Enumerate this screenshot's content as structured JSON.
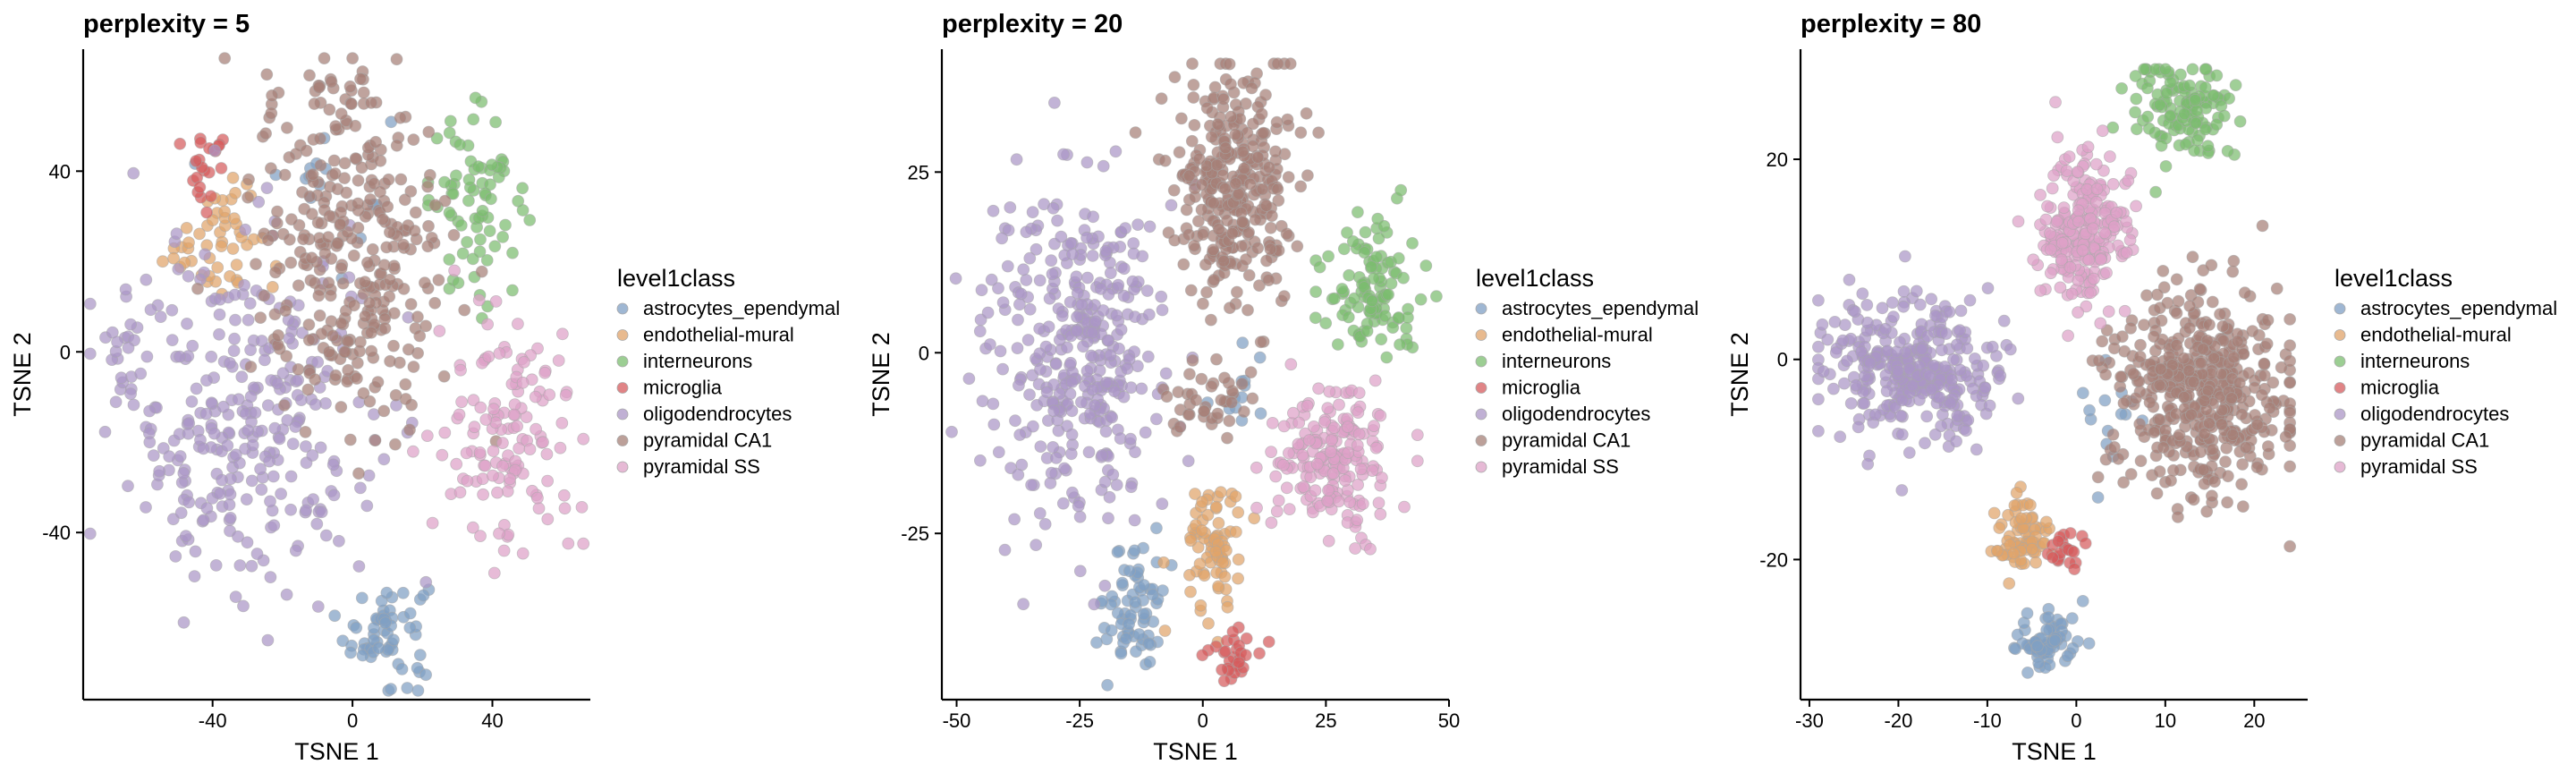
{
  "chart_data": [
    {
      "type": "scatter",
      "title": "perplexity = 5",
      "xlabel": "TSNE 1",
      "ylabel": "TSNE 2",
      "xlim": [
        -77,
        68
      ],
      "ylim": [
        -77,
        67
      ],
      "xticks": [
        -40,
        0,
        40
      ],
      "yticks": [
        -40,
        0,
        40
      ],
      "legend_title": "level1class",
      "legend_position": "right",
      "clusters": [
        {
          "series": "astrocytes_ependymal",
          "cx": 10,
          "cy": -62,
          "sx": 6,
          "sy": 6,
          "n": 60
        },
        {
          "series": "astrocytes_ependymal",
          "cx": -10,
          "cy": 38,
          "sx": 10,
          "sy": 10,
          "n": 15
        },
        {
          "series": "endothelial-mural",
          "cx": -40,
          "cy": 24,
          "sx": 7,
          "sy": 6,
          "n": 40
        },
        {
          "series": "endothelial-mural",
          "cx": -36,
          "cy": 32,
          "sx": 4,
          "sy": 3,
          "n": 10
        },
        {
          "series": "interneurons",
          "cx": 36,
          "cy": 33,
          "sx": 7,
          "sy": 10,
          "n": 75
        },
        {
          "series": "microglia",
          "cx": -42,
          "cy": 40,
          "sx": 4,
          "sy": 4,
          "n": 22
        },
        {
          "series": "oligodendrocytes",
          "cx": -30,
          "cy": -15,
          "sx": 17,
          "sy": 20,
          "n": 290
        },
        {
          "series": "oligodendrocytes",
          "cx": -66,
          "cy": 0,
          "sx": 4,
          "sy": 8,
          "n": 22
        },
        {
          "series": "pyramidal CA1",
          "cx": 0,
          "cy": 20,
          "sx": 14,
          "sy": 19,
          "n": 300
        },
        {
          "series": "pyramidal CA1",
          "cx": -5,
          "cy": 55,
          "sx": 10,
          "sy": 4,
          "n": 30
        },
        {
          "series": "pyramidal SS",
          "cx": 45,
          "cy": -20,
          "sx": 10,
          "sy": 13,
          "n": 130
        }
      ]
    },
    {
      "type": "scatter",
      "title": "perplexity = 20",
      "xlabel": "TSNE 1",
      "ylabel": "TSNE 2",
      "xlim": [
        -53,
        50
      ],
      "ylim": [
        -48,
        42
      ],
      "xticks": [
        -50,
        -25,
        0,
        25,
        50
      ],
      "yticks": [
        -25,
        0,
        25
      ],
      "legend_title": "level1class",
      "legend_position": "right",
      "clusters": [
        {
          "series": "astrocytes_ependymal",
          "cx": -14,
          "cy": -35,
          "sx": 3,
          "sy": 5,
          "n": 70
        },
        {
          "series": "astrocytes_ependymal",
          "cx": 8,
          "cy": -5,
          "sx": 4,
          "sy": 3,
          "n": 12
        },
        {
          "series": "endothelial-mural",
          "cx": 2,
          "cy": -27,
          "sx": 3,
          "sy": 5,
          "n": 75
        },
        {
          "series": "interneurons",
          "cx": 34,
          "cy": 9,
          "sx": 5,
          "sy": 5,
          "n": 110
        },
        {
          "series": "microglia",
          "cx": 6,
          "cy": -42,
          "sx": 3,
          "sy": 2,
          "n": 30
        },
        {
          "series": "oligodendrocytes",
          "cx": -26,
          "cy": 0,
          "sx": 9,
          "sy": 11,
          "n": 360
        },
        {
          "series": "pyramidal CA1",
          "cx": 6,
          "cy": 23,
          "sx": 6,
          "sy": 8,
          "n": 330
        },
        {
          "series": "pyramidal CA1",
          "cx": 2,
          "cy": -7,
          "sx": 6,
          "sy": 3,
          "n": 40
        },
        {
          "series": "pyramidal SS",
          "cx": 27,
          "cy": -15,
          "sx": 6,
          "sy": 5,
          "n": 190
        }
      ]
    },
    {
      "type": "scatter",
      "title": "perplexity = 80",
      "xlabel": "TSNE 1",
      "ylabel": "TSNE 2",
      "xlim": [
        -31,
        26
      ],
      "ylim": [
        -34,
        31
      ],
      "xticks": [
        -30,
        -20,
        -10,
        0,
        10,
        20
      ],
      "yticks": [
        -20,
        0,
        20
      ],
      "legend_title": "level1class",
      "legend_position": "right",
      "clusters": [
        {
          "series": "astrocytes_ependymal",
          "cx": -3,
          "cy": -28,
          "sx": 2,
          "sy": 1.5,
          "n": 70
        },
        {
          "series": "astrocytes_ependymal",
          "cx": 3,
          "cy": -7,
          "sx": 2,
          "sy": 4,
          "n": 14
        },
        {
          "series": "endothelial-mural",
          "cx": -6,
          "cy": -18,
          "sx": 1.5,
          "sy": 2,
          "n": 70
        },
        {
          "series": "interneurons",
          "cx": 12,
          "cy": 25,
          "sx": 3,
          "sy": 2.5,
          "n": 130
        },
        {
          "series": "microglia",
          "cx": -1,
          "cy": -19,
          "sx": 1,
          "sy": 1.2,
          "n": 22
        },
        {
          "series": "oligodendrocytes",
          "cx": -19,
          "cy": -1,
          "sx": 5,
          "sy": 3.5,
          "n": 330
        },
        {
          "series": "pyramidal CA1",
          "cx": 14,
          "cy": -3,
          "sx": 5,
          "sy": 5,
          "n": 480
        },
        {
          "series": "pyramidal SS",
          "cx": 1,
          "cy": 13,
          "sx": 2.5,
          "sy": 4,
          "n": 230
        }
      ]
    }
  ],
  "legend": {
    "title": "level1class",
    "items": [
      {
        "label": "astrocytes_ependymal",
        "color": "#7f9fc4"
      },
      {
        "label": "endothelial-mural",
        "color": "#e0a36a"
      },
      {
        "label": "interneurons",
        "color": "#7bbd6f"
      },
      {
        "label": "microglia",
        "color": "#d65b5d"
      },
      {
        "label": "oligodendrocytes",
        "color": "#ab96c6"
      },
      {
        "label": "pyramidal CA1",
        "color": "#a68077"
      },
      {
        "label": "pyramidal SS",
        "color": "#dea1c7"
      }
    ]
  }
}
